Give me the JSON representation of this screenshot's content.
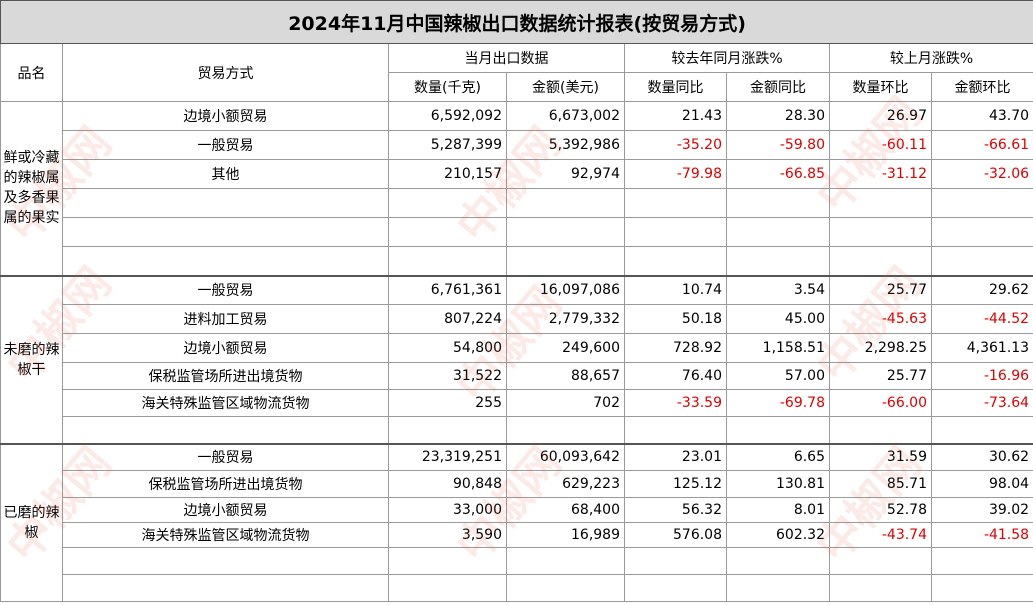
{
  "title": "2024年11月中国辣椒出口数据统计报表(按贸易方式)",
  "headers": {
    "category": "品名",
    "trade_mode": "贸易方式",
    "group_month": "当月出口数据",
    "group_yoy": "较去年同月涨跌%",
    "group_mom": "较上月涨跌%",
    "qty": "数量(千克)",
    "amount": "金额(美元)",
    "qty_yoy": "数量同比",
    "amt_yoy": "金额同比",
    "qty_mom": "数量环比",
    "amt_mom": "金额环比"
  },
  "sections": [
    {
      "category": "鲜或冷藏的辣椒属及多香果属的果实",
      "rows": [
        {
          "mode": "边境小额贸易",
          "qty": "6,592,092",
          "amount": "6,673,002",
          "qty_yoy": "21.43",
          "amt_yoy": "28.30",
          "qty_mom": "26.97",
          "amt_mom": "43.70"
        },
        {
          "mode": "一般贸易",
          "qty": "5,287,399",
          "amount": "5,392,986",
          "qty_yoy": "-35.20",
          "amt_yoy": "-59.80",
          "qty_mom": "-60.11",
          "amt_mom": "-66.61"
        },
        {
          "mode": "其他",
          "qty": "210,157",
          "amount": "92,974",
          "qty_yoy": "-79.98",
          "amt_yoy": "-66.85",
          "qty_mom": "-31.12",
          "amt_mom": "-32.06"
        },
        {
          "mode": "",
          "qty": "",
          "amount": "",
          "qty_yoy": "",
          "amt_yoy": "",
          "qty_mom": "",
          "amt_mom": ""
        },
        {
          "mode": "",
          "qty": "",
          "amount": "",
          "qty_yoy": "",
          "amt_yoy": "",
          "qty_mom": "",
          "amt_mom": ""
        },
        {
          "mode": "",
          "qty": "",
          "amount": "",
          "qty_yoy": "",
          "amt_yoy": "",
          "qty_mom": "",
          "amt_mom": ""
        }
      ]
    },
    {
      "category": "未磨的辣椒干",
      "rows": [
        {
          "mode": "一般贸易",
          "qty": "6,761,361",
          "amount": "16,097,086",
          "qty_yoy": "10.74",
          "amt_yoy": "3.54",
          "qty_mom": "25.77",
          "amt_mom": "29.62"
        },
        {
          "mode": "进料加工贸易",
          "qty": "807,224",
          "amount": "2,779,332",
          "qty_yoy": "50.18",
          "amt_yoy": "45.00",
          "qty_mom": "-45.63",
          "amt_mom": "-44.52"
        },
        {
          "mode": "边境小额贸易",
          "qty": "54,800",
          "amount": "249,600",
          "qty_yoy": "728.92",
          "amt_yoy": "1,158.51",
          "qty_mom": "2,298.25",
          "amt_mom": "4,361.13"
        },
        {
          "mode": "保税监管场所进出境货物",
          "qty": "31,522",
          "amount": "88,657",
          "qty_yoy": "76.40",
          "amt_yoy": "57.00",
          "qty_mom": "25.77",
          "amt_mom": "-16.96"
        },
        {
          "mode": "海关特殊监管区域物流货物",
          "qty": "255",
          "amount": "702",
          "qty_yoy": "-33.59",
          "amt_yoy": "-69.78",
          "qty_mom": "-66.00",
          "amt_mom": "-73.64"
        },
        {
          "mode": "",
          "qty": "",
          "amount": "",
          "qty_yoy": "",
          "amt_yoy": "",
          "qty_mom": "",
          "amt_mom": ""
        }
      ]
    },
    {
      "category": "已磨的辣椒",
      "rows": [
        {
          "mode": "一般贸易",
          "qty": "23,319,251",
          "amount": "60,093,642",
          "qty_yoy": "23.01",
          "amt_yoy": "6.65",
          "qty_mom": "31.59",
          "amt_mom": "30.62"
        },
        {
          "mode": "保税监管场所进出境货物",
          "qty": "90,848",
          "amount": "629,223",
          "qty_yoy": "125.12",
          "amt_yoy": "130.81",
          "qty_mom": "85.71",
          "amt_mom": "98.04"
        },
        {
          "mode": "边境小额贸易",
          "qty": "33,000",
          "amount": "68,400",
          "qty_yoy": "56.32",
          "amt_yoy": "8.01",
          "qty_mom": "52.78",
          "amt_mom": "39.02"
        },
        {
          "mode": "海关特殊监管区域物流货物",
          "qty": "3,590",
          "amount": "16,989",
          "qty_yoy": "576.08",
          "amt_yoy": "602.32",
          "qty_mom": "-43.74",
          "amt_mom": "-41.58"
        },
        {
          "mode": "",
          "qty": "",
          "amount": "",
          "qty_yoy": "",
          "amt_yoy": "",
          "qty_mom": "",
          "amt_mom": ""
        },
        {
          "mode": "",
          "qty": "",
          "amount": "",
          "qty_yoy": "",
          "amt_yoy": "",
          "qty_mom": "",
          "amt_mom": ""
        }
      ]
    }
  ],
  "colors": {
    "negative": "#e00000",
    "title_bg": "#d9d9d9",
    "watermark": "#e65a46"
  },
  "watermark": {
    "text": "中椒网"
  }
}
